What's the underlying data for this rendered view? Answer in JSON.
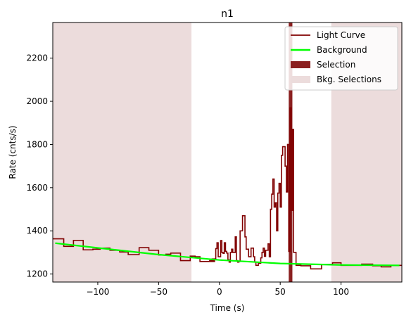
{
  "chart_data": {
    "type": "line",
    "title": "n1",
    "xlabel": "Time (s)",
    "ylabel": "Rate (cnts/s)",
    "xlim": [
      -137,
      150
    ],
    "ylim": [
      1163,
      2365
    ],
    "x_ticks": [
      -100,
      -50,
      0,
      50,
      100
    ],
    "x_tick_labels": [
      "−100",
      "−50",
      "0",
      "50",
      "100"
    ],
    "y_ticks": [
      1200,
      1400,
      1600,
      1800,
      2000,
      2200
    ],
    "y_tick_labels": [
      "1200",
      "1400",
      "1600",
      "1800",
      "2000",
      "2200"
    ],
    "grid": false,
    "legend_position": "top-right",
    "legend": [
      {
        "label": "Light Curve",
        "kind": "line",
        "color": "#800000"
      },
      {
        "label": "Background",
        "kind": "line",
        "color": "#00ff00"
      },
      {
        "label": "Selection",
        "kind": "patch",
        "color": "#8b2020"
      },
      {
        "label": "Bkg. Selections",
        "kind": "patch",
        "color": "#ecdcdc"
      }
    ],
    "colors": {
      "light_curve": "#800000",
      "background": "#00ff00",
      "selection": "#8b2020",
      "bkg_selection": "#ecdcdc"
    },
    "bkg_selections": [
      [
        -137,
        -23
      ],
      [
        92,
        150
      ]
    ],
    "selection": [
      57,
      60
    ],
    "background_points": [
      [
        -135,
        1343
      ],
      [
        -100,
        1321
      ],
      [
        -50,
        1290
      ],
      [
        0,
        1265
      ],
      [
        50,
        1249
      ],
      [
        100,
        1242
      ],
      [
        148,
        1240
      ]
    ],
    "light_curve_steps": [
      [
        -137,
        1363
      ],
      [
        -128,
        1328
      ],
      [
        -120,
        1356
      ],
      [
        -112,
        1312
      ],
      [
        -104,
        1315
      ],
      [
        -98,
        1320
      ],
      [
        -90,
        1310
      ],
      [
        -82,
        1302
      ],
      [
        -75,
        1290
      ],
      [
        -66,
        1322
      ],
      [
        -58,
        1310
      ],
      [
        -50,
        1288
      ],
      [
        -44,
        1292
      ],
      [
        -40,
        1297
      ],
      [
        -32,
        1262
      ],
      [
        -24,
        1283
      ],
      [
        -20,
        1280
      ],
      [
        -16,
        1258
      ],
      [
        -4,
        1262
      ],
      [
        -8,
        1260
      ],
      [
        -6,
        1270
      ],
      [
        -3,
        1318
      ],
      [
        -2,
        1345
      ],
      [
        -1,
        1280
      ],
      [
        1,
        1355
      ],
      [
        2,
        1300
      ],
      [
        3,
        1296
      ],
      [
        4,
        1345
      ],
      [
        5,
        1305
      ],
      [
        6,
        1297
      ],
      [
        7,
        1266
      ],
      [
        8,
        1255
      ],
      [
        9,
        1300
      ],
      [
        10,
        1315
      ],
      [
        11,
        1300
      ],
      [
        13,
        1372
      ],
      [
        14,
        1262
      ],
      [
        15,
        1255
      ],
      [
        16,
        1258
      ],
      [
        17,
        1400
      ],
      [
        19,
        1470
      ],
      [
        21,
        1372
      ],
      [
        22,
        1315
      ],
      [
        24,
        1280
      ],
      [
        26,
        1320
      ],
      [
        28,
        1280
      ],
      [
        29,
        1255
      ],
      [
        30,
        1240
      ],
      [
        32,
        1250
      ],
      [
        34,
        1275
      ],
      [
        35,
        1300
      ],
      [
        36,
        1320
      ],
      [
        37,
        1282
      ],
      [
        38,
        1310
      ],
      [
        40,
        1340
      ],
      [
        41,
        1280
      ],
      [
        42,
        1500
      ],
      [
        43,
        1570
      ],
      [
        44,
        1640
      ],
      [
        45,
        1510
      ],
      [
        46,
        1530
      ],
      [
        47,
        1400
      ],
      [
        48,
        1575
      ],
      [
        49,
        1620
      ],
      [
        50,
        1510
      ],
      [
        51,
        1750
      ],
      [
        52,
        1790
      ],
      [
        53,
        1790
      ],
      [
        54,
        1700
      ],
      [
        55,
        1580
      ],
      [
        56,
        1800
      ],
      [
        57,
        1305
      ],
      [
        58,
        1970
      ],
      [
        59,
        1495
      ],
      [
        60,
        1870
      ],
      [
        61,
        1300
      ],
      [
        63,
        1240
      ],
      [
        67,
        1238
      ],
      [
        75,
        1224
      ],
      [
        84,
        1245
      ],
      [
        93,
        1252
      ],
      [
        100,
        1240
      ],
      [
        110,
        1240
      ],
      [
        117,
        1246
      ],
      [
        126,
        1238
      ],
      [
        133,
        1233
      ],
      [
        141,
        1240
      ],
      [
        150,
        1240
      ]
    ]
  }
}
